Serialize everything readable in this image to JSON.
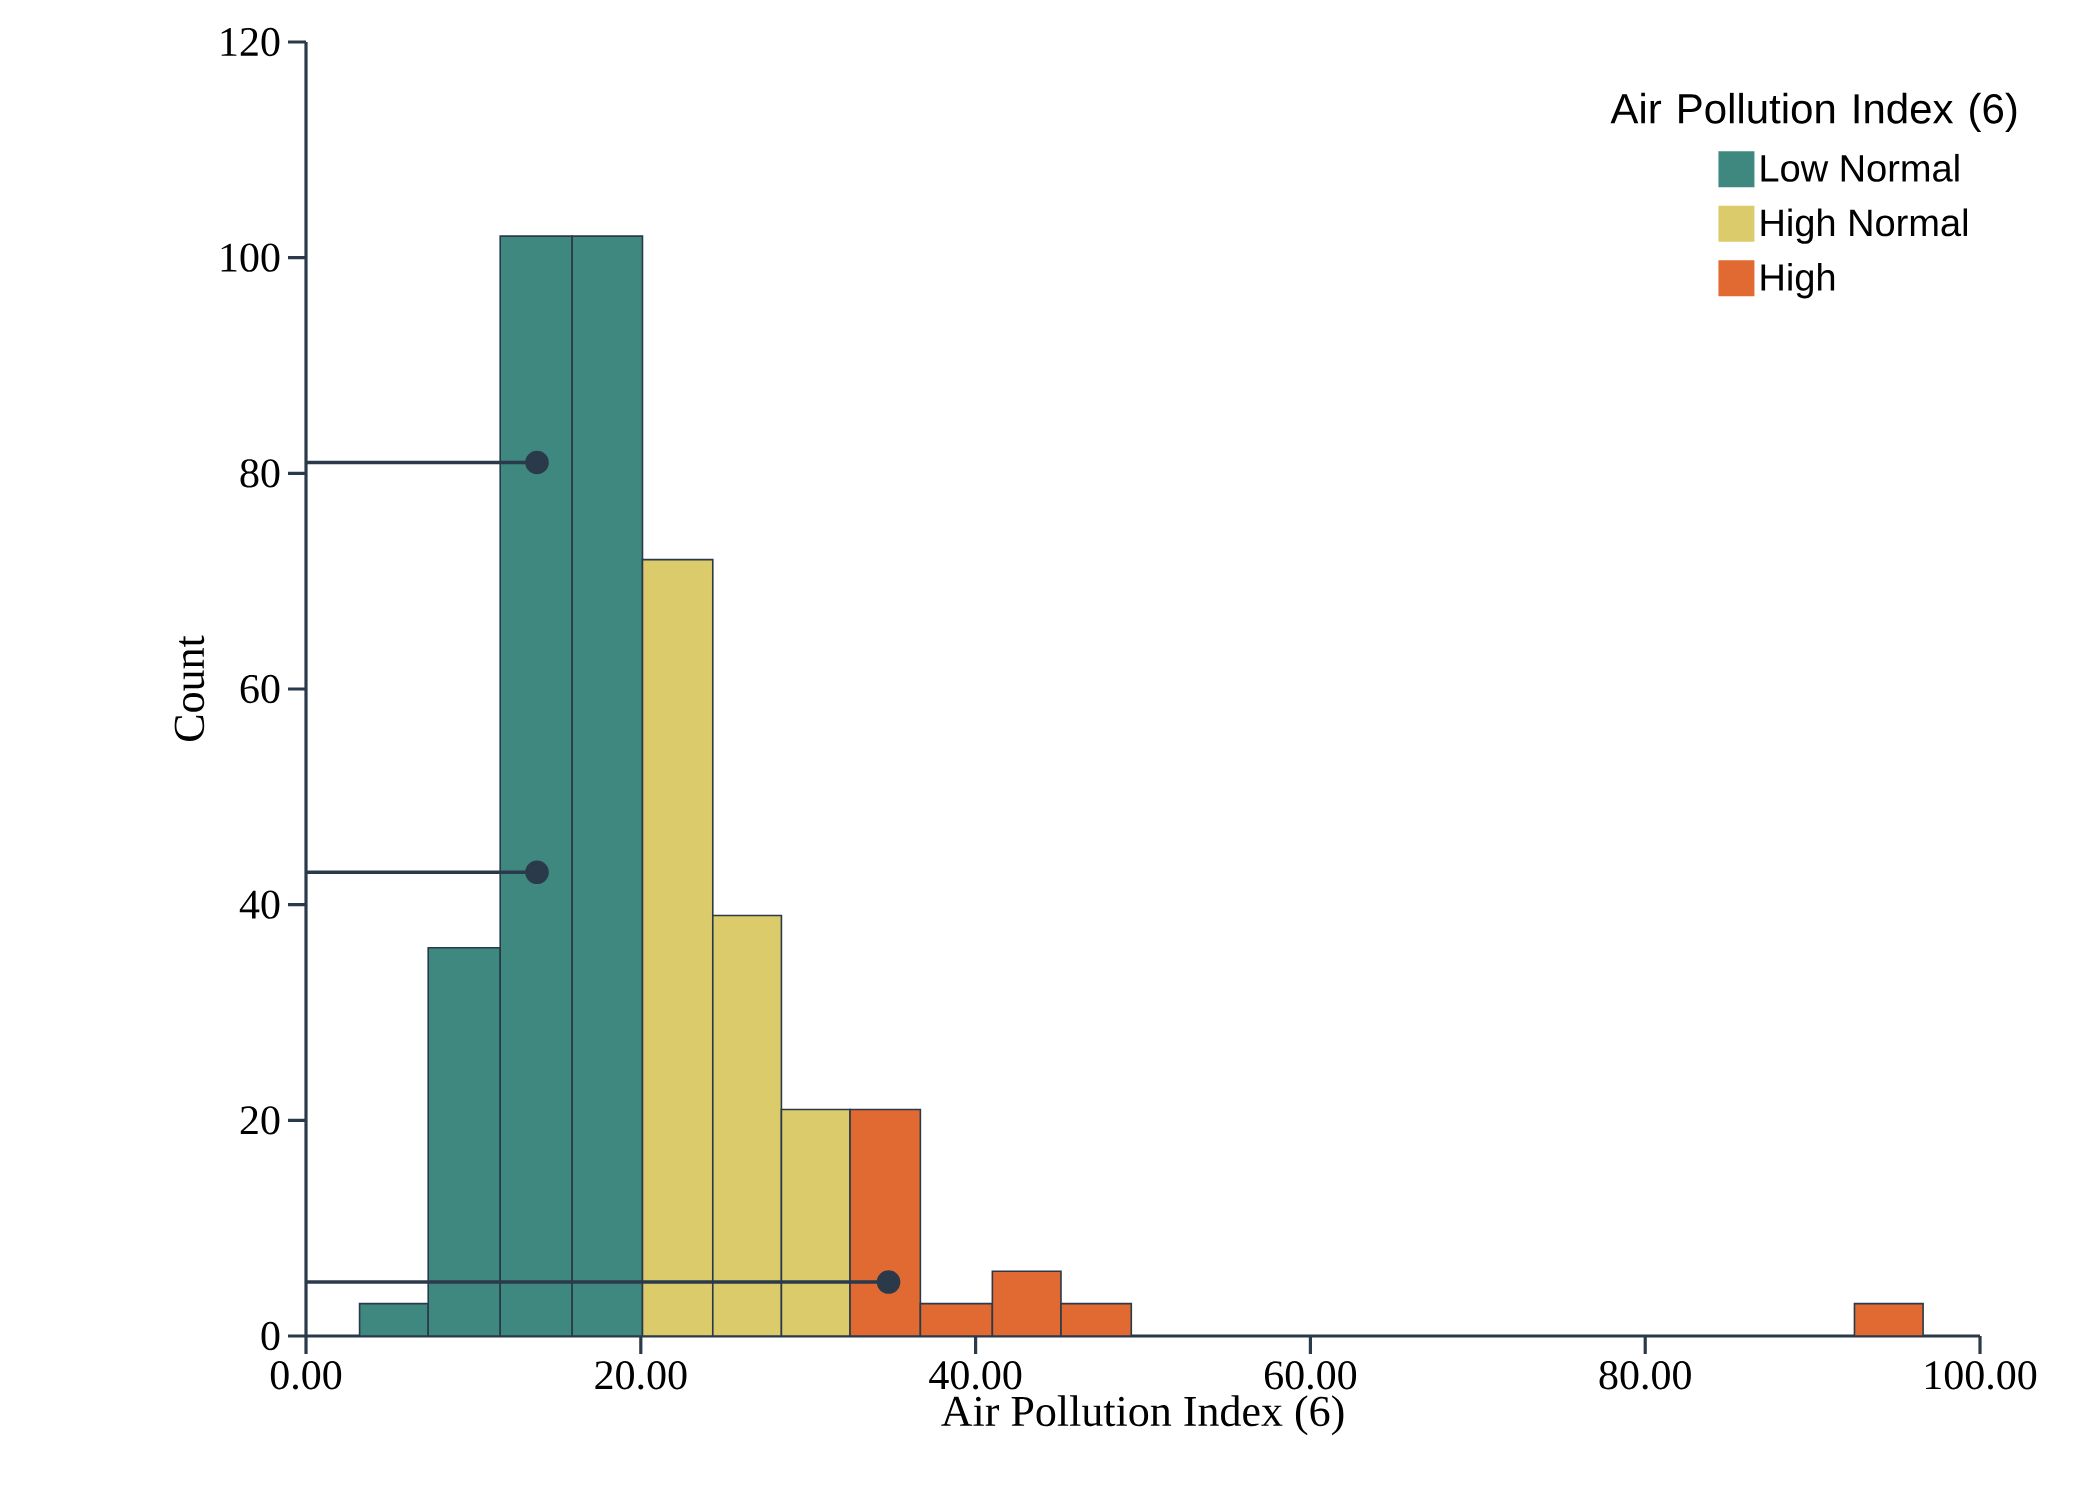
{
  "chart_data": {
    "type": "histogram",
    "xlabel": "Air Pollution Index (6)",
    "ylabel": "Count",
    "legend_title": "Air Pollution Index (6)",
    "bins": [
      3.2,
      7.3,
      11.6,
      15.9,
      20.1,
      24.3,
      28.4,
      32.5,
      36.7,
      41.0,
      45.1,
      49.3,
      92.5,
      96.6
    ],
    "series": [
      {
        "name": "Low Normal",
        "color": "#3f8880",
        "values": [
          3,
          36,
          102,
          102,
          null,
          null,
          null,
          null,
          null,
          null,
          null,
          null,
          null
        ]
      },
      {
        "name": "High Normal",
        "color": "#dbcb6a",
        "values": [
          null,
          null,
          null,
          null,
          72,
          39,
          21,
          null,
          null,
          null,
          null,
          null,
          null
        ]
      },
      {
        "name": "High",
        "color": "#e06a32",
        "values": [
          null,
          null,
          null,
          null,
          null,
          null,
          null,
          21,
          3,
          6,
          3,
          null,
          3
        ]
      },
      {
        "type": "line",
        "color": "#2b3a4a",
        "marker": "circle",
        "x": [
          0,
          13.8
        ],
        "values": [
          81,
          81
        ]
      },
      {
        "type": "line",
        "color": "#2b3a4a",
        "marker": "circle",
        "x": [
          0,
          13.8
        ],
        "values": [
          43,
          43
        ]
      },
      {
        "type": "line",
        "color": "#2b3a4a",
        "marker": "circle",
        "x": [
          0,
          34.8
        ],
        "values": [
          5,
          5
        ]
      }
    ],
    "xlim": [
      0,
      100
    ],
    "ylim": [
      0,
      120
    ],
    "xticks": [
      {
        "value": 0,
        "label": "0.00"
      },
      {
        "value": 20,
        "label": "20.00"
      },
      {
        "value": 40,
        "label": "40.00"
      },
      {
        "value": 60,
        "label": "60.00"
      },
      {
        "value": 80,
        "label": "80.00"
      },
      {
        "value": 100,
        "label": "100.00"
      }
    ],
    "yticks": [
      0,
      20,
      40,
      60,
      80,
      100,
      120
    ],
    "legend": "top right"
  }
}
